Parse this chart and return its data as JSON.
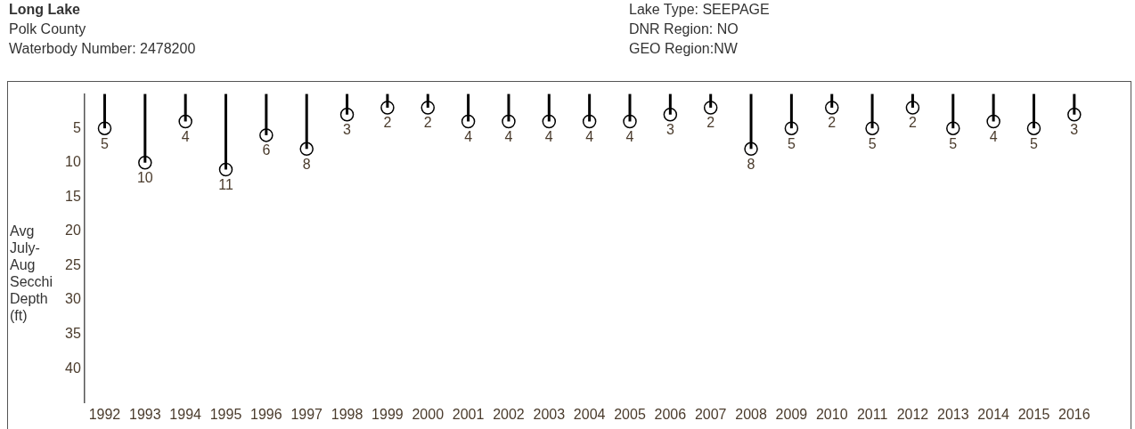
{
  "chart_data": {
    "type": "lollipop",
    "marker": "circle",
    "title": "Long Lake",
    "annotations": [
      "Polk County",
      "Waterbody Number: 2478200",
      "Lake Type: SEEPAGE",
      "DNR Region: NO",
      "GEO Region:NW"
    ],
    "ylabel": "Avg July-Aug Secchi Depth (ft)",
    "categories": [
      "1992",
      "1993",
      "1994",
      "1995",
      "1996",
      "1997",
      "1998",
      "1999",
      "2000",
      "2001",
      "2002",
      "2003",
      "2004",
      "2005",
      "2006",
      "2007",
      "2008",
      "2009",
      "2010",
      "2011",
      "2012",
      "2013",
      "2014",
      "2015",
      "2016"
    ],
    "values": [
      5,
      10,
      4,
      11,
      6,
      8,
      3,
      2,
      2,
      4,
      4,
      4,
      4,
      4,
      3,
      2,
      8,
      5,
      2,
      5,
      2,
      5,
      4,
      5,
      3
    ],
    "color": "#000000",
    "data_labels": true,
    "ylim": [
      45,
      0
    ],
    "yticks": [
      5,
      10,
      15,
      20,
      25,
      30,
      35,
      40
    ],
    "grid": false,
    "legend": false
  }
}
